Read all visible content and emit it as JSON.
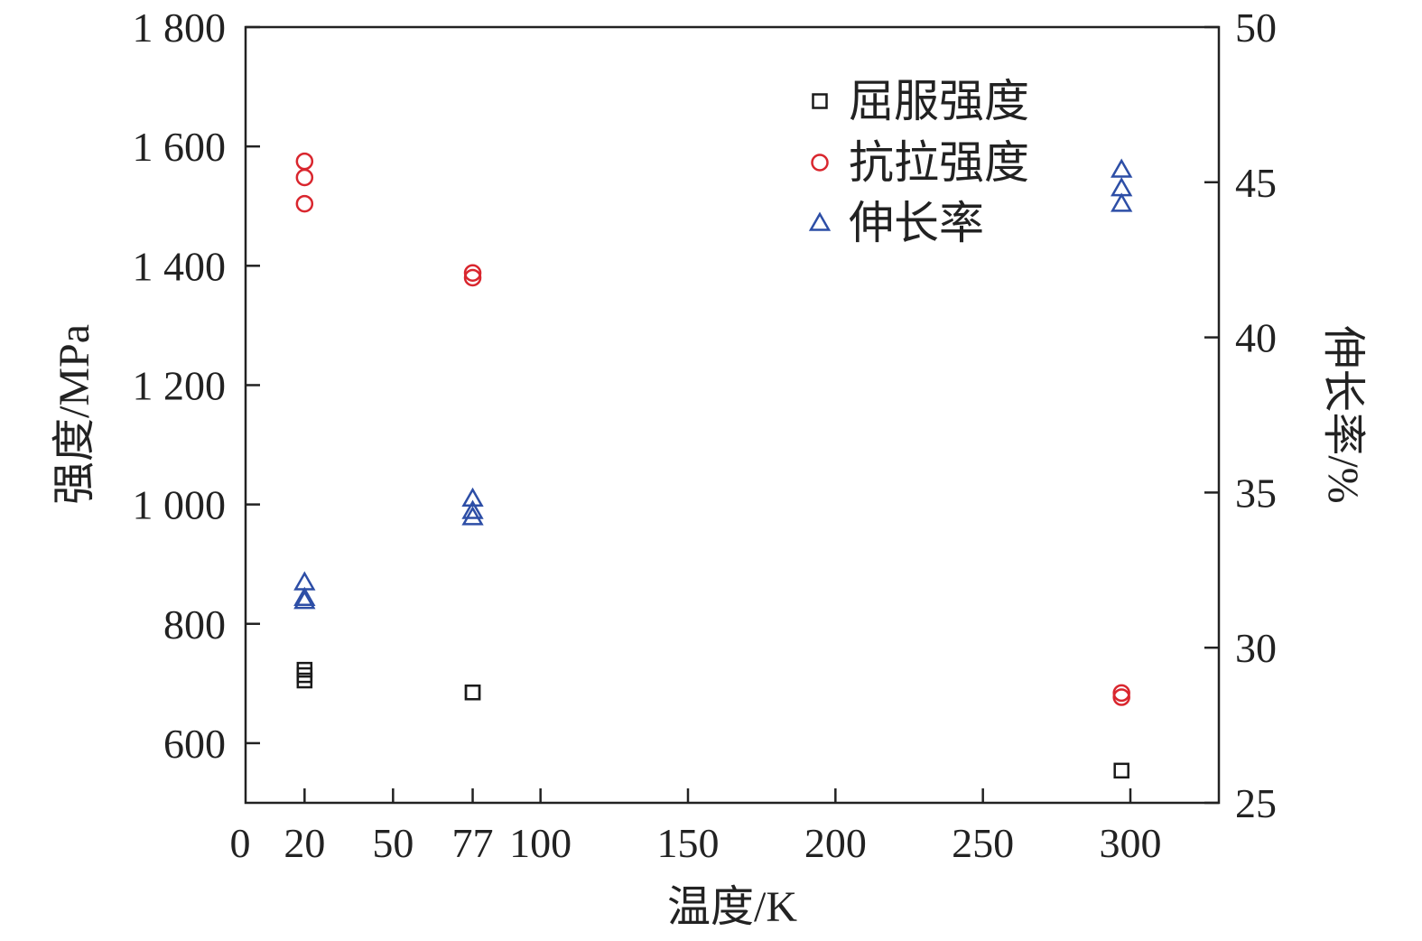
{
  "chart_data": {
    "type": "scatter",
    "title": "",
    "xlabel": "温度/K",
    "ylabel_left": "强度/MPa",
    "ylabel_right": "伸长率/%",
    "x_ticks": [
      0,
      20,
      50,
      77,
      100,
      150,
      200,
      250,
      300
    ],
    "x_tick_labels": [
      "0",
      "20",
      "50",
      "77",
      "100",
      "150",
      "200",
      "250",
      "300"
    ],
    "y_left_ticks": [
      600,
      800,
      1000,
      1200,
      1400,
      1600,
      1800
    ],
    "y_left_tick_labels": [
      "600",
      "800",
      "1 000",
      "1 200",
      "1 400",
      "1 600",
      "1 800"
    ],
    "y_right_ticks": [
      25,
      30,
      35,
      40,
      45,
      50
    ],
    "y_right_tick_labels": [
      "25",
      "30",
      "35",
      "40",
      "45",
      "50"
    ],
    "xlim": [
      0,
      330
    ],
    "ylim_left": [
      500,
      1800
    ],
    "ylim_right": [
      25,
      50
    ],
    "grid": false,
    "legend_position": "top-right",
    "series": [
      {
        "name": "屈服强度",
        "axis": "left",
        "marker": "square",
        "color": "#1a1a1a",
        "points": [
          [
            20,
            723
          ],
          [
            20,
            714
          ],
          [
            20,
            705
          ],
          [
            77,
            685
          ],
          [
            77,
            685
          ],
          [
            297,
            554
          ]
        ]
      },
      {
        "name": "抗拉强度",
        "axis": "left",
        "marker": "circle",
        "color": "#d9262e",
        "points": [
          [
            20,
            1575
          ],
          [
            20,
            1548
          ],
          [
            20,
            1504
          ],
          [
            77,
            1388
          ],
          [
            77,
            1380
          ],
          [
            297,
            684
          ],
          [
            297,
            677
          ]
        ]
      },
      {
        "name": "伸长率",
        "axis": "right",
        "marker": "triangle",
        "color": "#2d4ea6",
        "points": [
          [
            20,
            32.1
          ],
          [
            20,
            31.6
          ],
          [
            20,
            31.5
          ],
          [
            77,
            34.8
          ],
          [
            77,
            34.4
          ],
          [
            77,
            34.2
          ],
          [
            297,
            45.4
          ],
          [
            297,
            44.8
          ],
          [
            297,
            44.3
          ]
        ]
      }
    ]
  }
}
